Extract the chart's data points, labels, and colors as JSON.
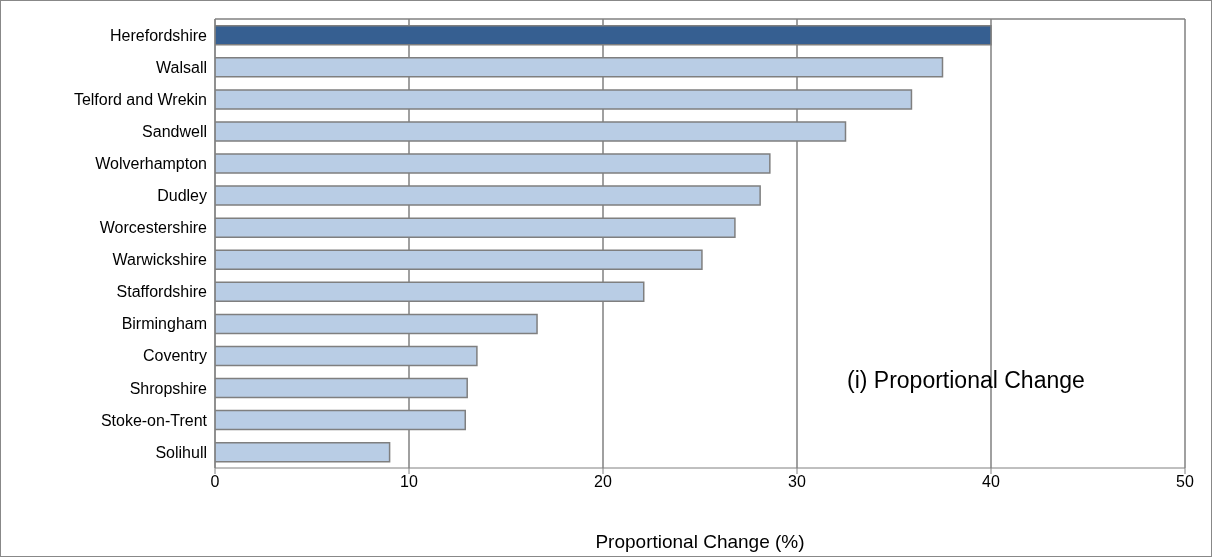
{
  "chart_data": {
    "type": "bar",
    "orientation": "horizontal",
    "xlabel": "Proportional  Change (%)",
    "categories": [
      "Herefordshire",
      "Walsall",
      "Telford and Wrekin",
      "Sandwell",
      "Wolverhampton",
      "Dudley",
      "Worcestershire",
      "Warwickshire",
      "Staffordshire",
      "Birmingham",
      "Coventry",
      "Shropshire",
      "Stoke-on-Trent",
      "Solihull"
    ],
    "values": [
      40,
      37.5,
      35.9,
      32.5,
      28.6,
      28.1,
      26.8,
      25.1,
      22.1,
      16.6,
      13.5,
      13.0,
      12.9,
      9.0
    ],
    "colors": [
      "#365f91",
      "#b9cde5",
      "#b9cde5",
      "#b9cde5",
      "#b9cde5",
      "#b9cde5",
      "#b9cde5",
      "#b9cde5",
      "#b9cde5",
      "#b9cde5",
      "#b9cde5",
      "#b9cde5",
      "#b9cde5",
      "#b9cde5"
    ],
    "xlim": [
      0,
      50
    ],
    "xticks": [
      0,
      10,
      20,
      30,
      40,
      50
    ],
    "grid": "x",
    "annotations": [
      "(i) Proportional Change"
    ]
  }
}
